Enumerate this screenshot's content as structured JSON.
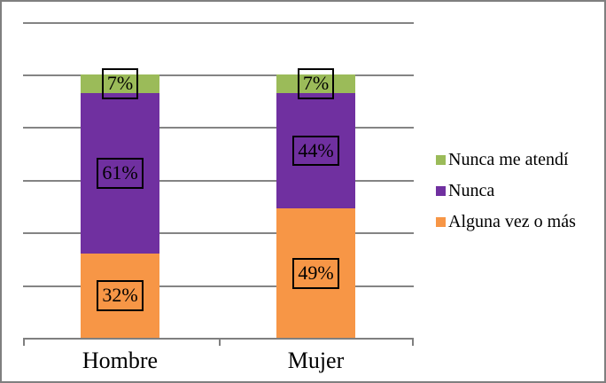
{
  "chart_data": {
    "type": "bar",
    "stacked": true,
    "title": "",
    "xlabel": "",
    "ylabel": "",
    "categories": [
      "Hombre",
      "Mujer"
    ],
    "series": [
      {
        "name": "Alguna vez o más",
        "color": "#F79646",
        "values": [
          32,
          49
        ],
        "labels": [
          "32%",
          "49%"
        ]
      },
      {
        "name": "Nunca",
        "color": "#7030A0",
        "values": [
          61,
          44
        ],
        "labels": [
          "61%",
          "44%"
        ]
      },
      {
        "name": "Nunca me atendí",
        "color": "#9BBB59",
        "values": [
          7,
          7
        ],
        "labels": [
          "7%",
          "7%"
        ]
      }
    ],
    "ylim": [
      0,
      120
    ],
    "gridline_step": 20,
    "y_axis_labels_visible": false,
    "grid": true,
    "legend_position": "right",
    "legend_order": [
      "Nunca me atendí",
      "Nunca",
      "Alguna vez o más"
    ],
    "colors": {
      "gridline": "#848484",
      "axis": "#7f7f7f",
      "outer_border": "#7f7f7f",
      "data_label_text": "#000000",
      "data_label_border": "#000000",
      "background": "#ffffff"
    }
  }
}
